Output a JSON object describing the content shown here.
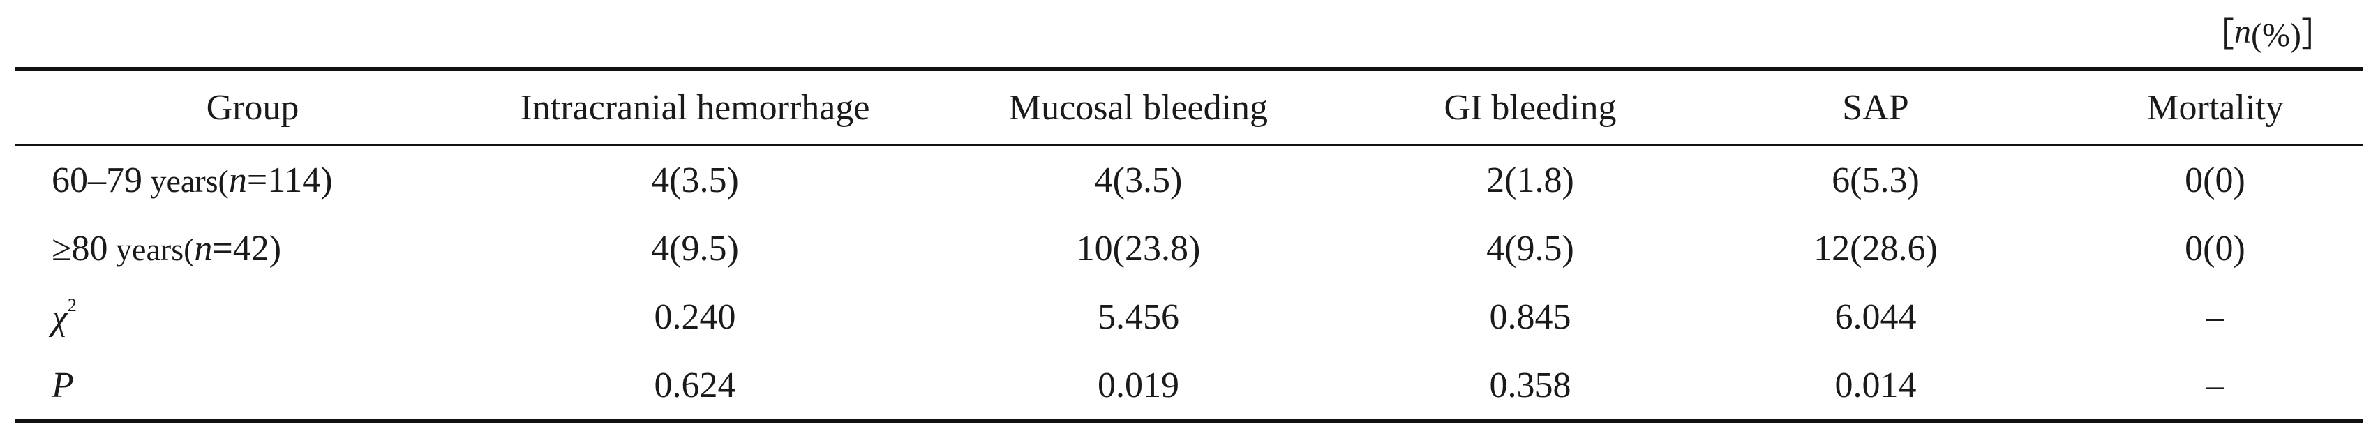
{
  "unit": {
    "prefix": "［",
    "n": "n",
    "suffix": "(%)］"
  },
  "header": [
    "Group",
    "Intracranial hemorrhage",
    "Mucosal bleeding",
    "GI bleeding",
    "SAP",
    "Mortality"
  ],
  "rows": [
    {
      "group": {
        "prefix": "60–79",
        "words": " years(",
        "n": "n",
        "rest": "=114)"
      },
      "values": [
        "4(3.5)",
        "4(3.5)",
        "2(1.8)",
        "6(5.3)",
        "0(0)"
      ]
    },
    {
      "group": {
        "prefix": "≥80",
        "words": " years(",
        "n": "n",
        "rest": "=42)"
      },
      "values": [
        "4(9.5)",
        "10(23.8)",
        "4(9.5)",
        "12(28.6)",
        "0(0)"
      ]
    }
  ],
  "chi": {
    "symbol": "χ",
    "sup": "2",
    "values": [
      "0.240",
      "5.456",
      "0.845",
      "6.044",
      "–"
    ]
  },
  "p": {
    "symbol": "P",
    "values": [
      "0.624",
      "0.019",
      "0.358",
      "0.014",
      "–"
    ]
  }
}
